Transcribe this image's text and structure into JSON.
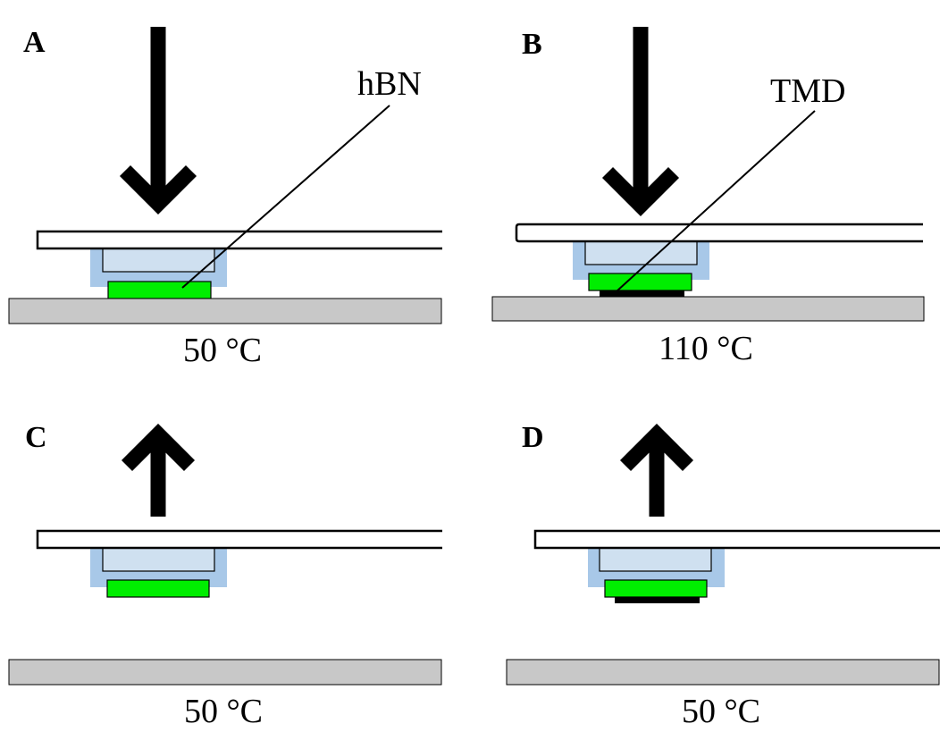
{
  "panels": {
    "a": {
      "letter": "A",
      "temperature": "50 °C",
      "callout": "hBN"
    },
    "b": {
      "letter": "B",
      "temperature": "110 °C",
      "callout": "TMD"
    },
    "c": {
      "letter": "C",
      "temperature": "50 °C"
    },
    "d": {
      "letter": "D",
      "temperature": "50 °C"
    }
  },
  "colors": {
    "slide_fill": "#ffffff",
    "stamp_outer": "#a8c8e8",
    "stamp_inner": "#cfe0f0",
    "hbn_flake": "#00ee00",
    "tmd_layer": "#000000",
    "substrate": "#c8c8c8",
    "arrow": "#000000"
  }
}
